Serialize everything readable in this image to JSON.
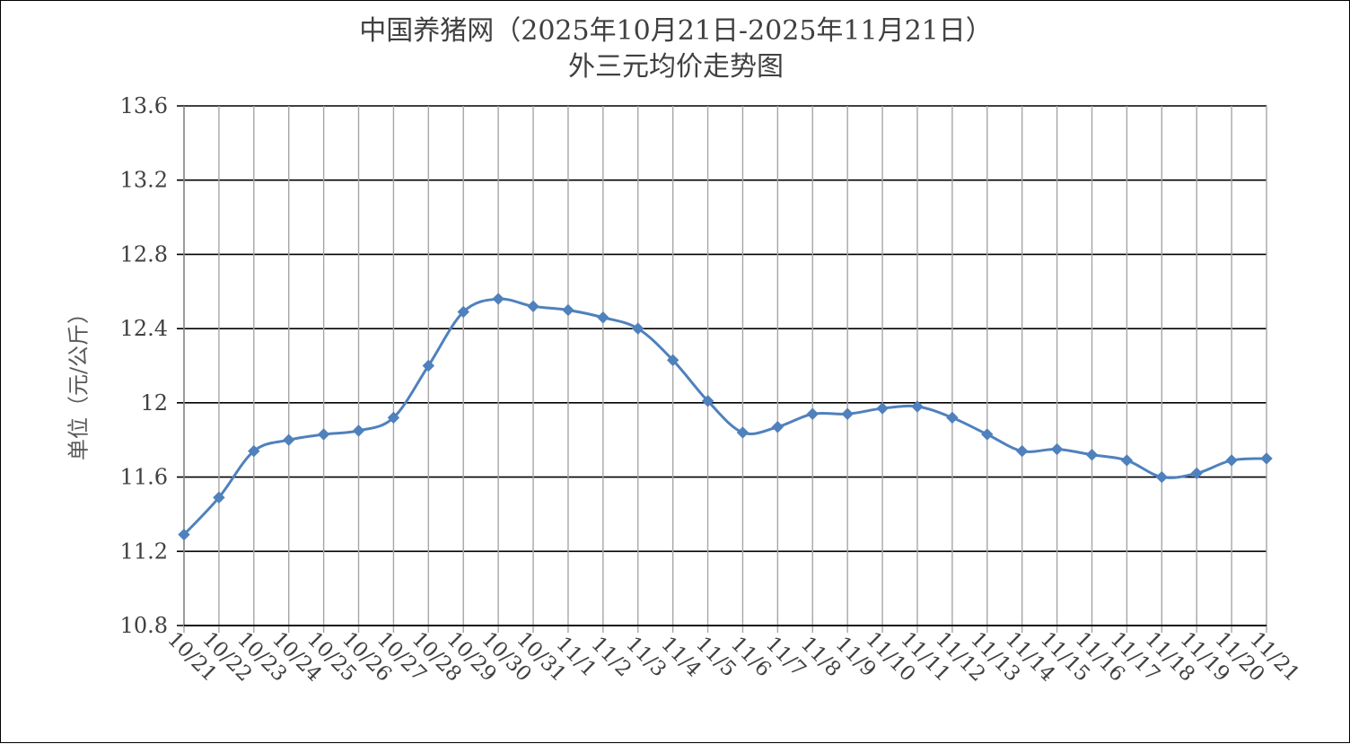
{
  "chart_data": {
    "type": "line",
    "title": "中国养猪网（2025年10月21日-2025年11月21日）",
    "subtitle": "外三元均价走势图",
    "ylabel": "单位（元/公斤）",
    "xlabel": "",
    "ylim": [
      10.8,
      13.6
    ],
    "yticks": [
      10.8,
      11.2,
      11.6,
      12,
      12.4,
      12.8,
      13.2,
      13.6
    ],
    "ytick_labels": [
      "10.8",
      "11.2",
      "11.6",
      "12",
      "12.4",
      "12.8",
      "13.2",
      "13.6"
    ],
    "grid": true,
    "line_color": "#4F81BD",
    "categories": [
      "10/21",
      "10/22",
      "10/23",
      "10/24",
      "10/25",
      "10/26",
      "10/27",
      "10/28",
      "10/29",
      "10/30",
      "10/31",
      "11/1",
      "11/2",
      "11/3",
      "11/4",
      "11/5",
      "11/6",
      "11/7",
      "11/8",
      "11/9",
      "11/10",
      "11/11",
      "11/12",
      "11/13",
      "11/14",
      "11/15",
      "11/16",
      "11/17",
      "11/18",
      "11/19",
      "11/20",
      "11/21"
    ],
    "series": [
      {
        "values": [
          11.29,
          11.49,
          11.74,
          11.8,
          11.83,
          11.85,
          11.92,
          12.2,
          12.49,
          12.56,
          12.52,
          12.5,
          12.46,
          12.4,
          12.23,
          12.01,
          11.84,
          11.87,
          11.94,
          11.94,
          11.97,
          11.98,
          11.92,
          11.83,
          11.74,
          11.75,
          11.72,
          11.69,
          11.6,
          11.62,
          11.69,
          11.7
        ]
      }
    ]
  }
}
